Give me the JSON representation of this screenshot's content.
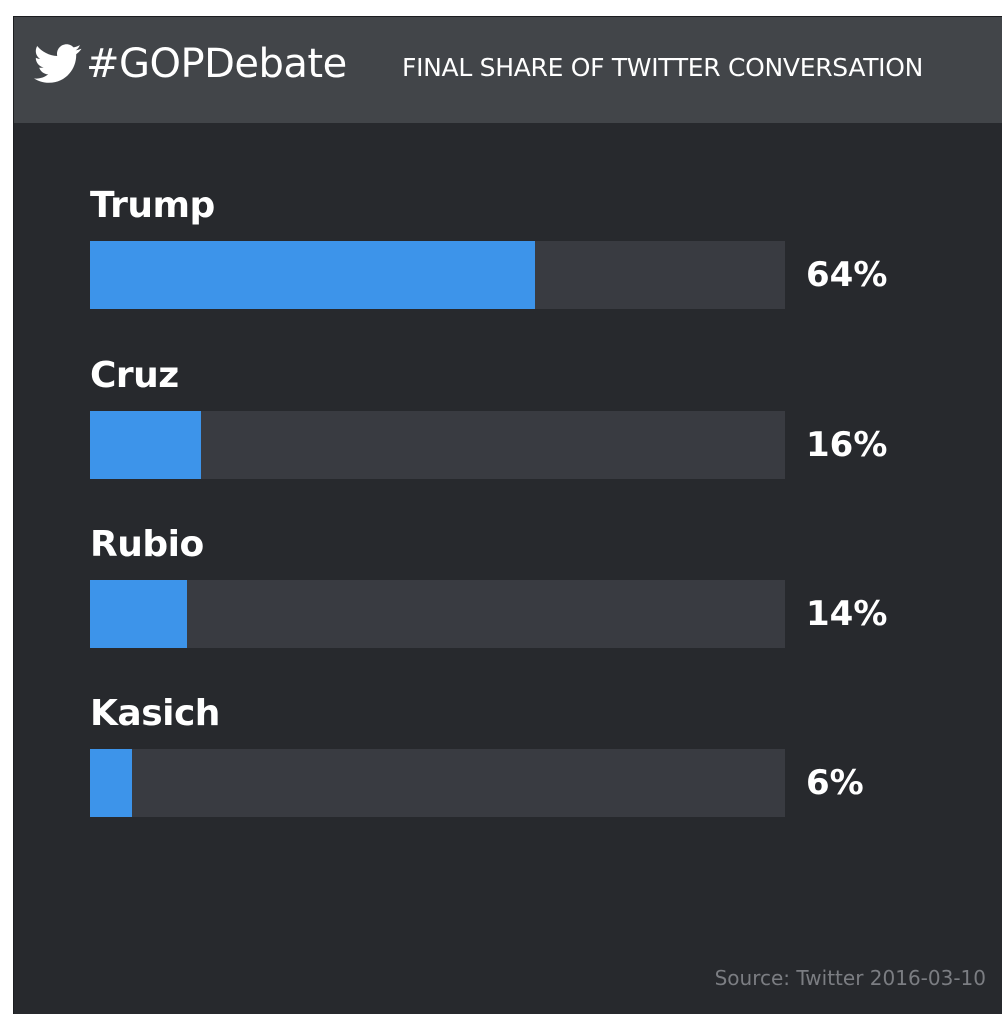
{
  "header": {
    "icon": "twitter-bird-icon",
    "hashtag": "#GOPDebate",
    "subtitle": "FINAL SHARE OF TWITTER CONVERSATION"
  },
  "colors": {
    "background": "#27292d",
    "header": "#424549",
    "bar": "#3d94ea",
    "track": "#393b41",
    "text": "#ffffff",
    "source": "#7b7d82"
  },
  "chart_data": {
    "type": "bar",
    "orientation": "horizontal",
    "title": "FINAL SHARE OF TWITTER CONVERSATION",
    "categories": [
      "Trump",
      "Cruz",
      "Rubio",
      "Kasich"
    ],
    "values": [
      64,
      16,
      14,
      6
    ],
    "value_labels": [
      "64%",
      "16%",
      "14%",
      "6%"
    ],
    "unit": "%",
    "xlim": [
      0,
      100
    ],
    "grid": false
  },
  "footer": {
    "source": "Source: Twitter 2016-03-10"
  }
}
